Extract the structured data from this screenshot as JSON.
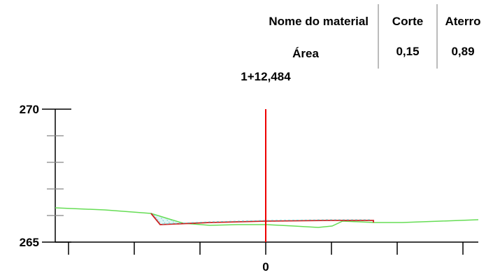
{
  "material_table": {
    "header_material": "Nome do material",
    "header_cut": "Corte",
    "header_fill": "Aterro",
    "row_label": "Área",
    "cut_value": "0,15",
    "fill_value": "0,89"
  },
  "station": "1+12,484",
  "axes": {
    "y_top_label": "270",
    "y_bottom_label": "265",
    "x_center_label": "0"
  },
  "colors": {
    "existing_ground": "#66dd55",
    "design_profile": "#cc2222",
    "centerline": "#ee0000",
    "cut_hatch": "#66cccc",
    "axis": "#000000",
    "grid_ticks": "#888888",
    "table_dividers": "#bbbbbb"
  }
}
